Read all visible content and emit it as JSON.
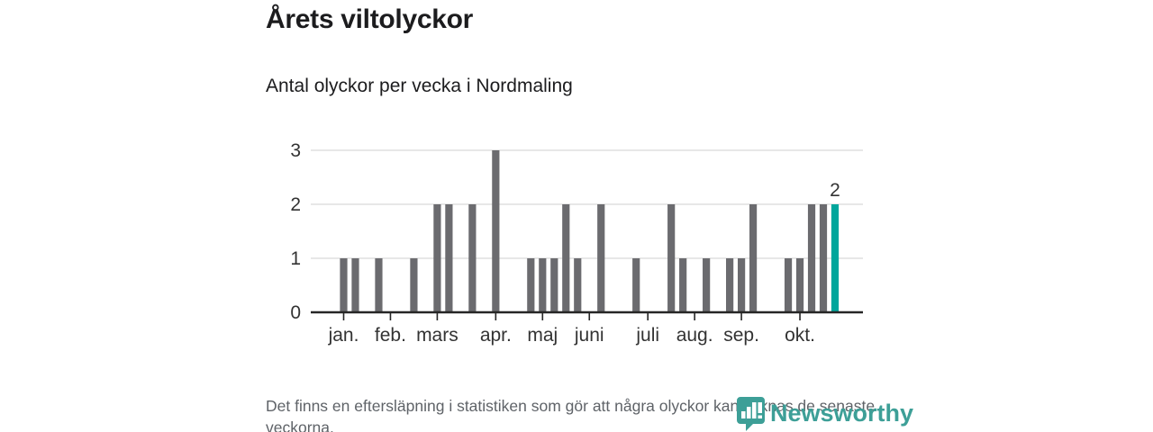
{
  "chart_data": {
    "type": "bar",
    "title": "Årets viltolyckor",
    "subtitle": "Antal olyckor per vecka i Nordmaling",
    "xlabel": "",
    "ylabel": "",
    "x_unit": "week",
    "values": [
      1,
      1,
      0,
      1,
      0,
      0,
      1,
      0,
      2,
      2,
      0,
      2,
      0,
      3,
      0,
      0,
      1,
      1,
      1,
      2,
      1,
      0,
      2,
      0,
      0,
      1,
      0,
      0,
      2,
      1,
      0,
      1,
      0,
      1,
      1,
      2,
      0,
      0,
      1,
      1,
      2,
      2,
      2
    ],
    "month_ticks": [
      {
        "label": "jan.",
        "week_index": 0
      },
      {
        "label": "feb.",
        "week_index": 4
      },
      {
        "label": "mars",
        "week_index": 8
      },
      {
        "label": "apr.",
        "week_index": 13
      },
      {
        "label": "maj",
        "week_index": 17
      },
      {
        "label": "juni",
        "week_index": 21
      },
      {
        "label": "juli",
        "week_index": 26
      },
      {
        "label": "aug.",
        "week_index": 30
      },
      {
        "label": "sep.",
        "week_index": 34
      },
      {
        "label": "okt.",
        "week_index": 39
      }
    ],
    "yticks": [
      0,
      1,
      2,
      3
    ],
    "ylim": [
      0,
      3
    ],
    "grid": true,
    "legend": "none",
    "highlight_index": 42,
    "annotation": {
      "text": "2",
      "week_index": 42,
      "value": 2
    },
    "colors": {
      "bar": "#6b6b6f",
      "highlight": "#00a69c",
      "grid": "#e7e7e7",
      "axis": "#262626",
      "label": "#333333"
    }
  },
  "footer": {
    "note": "Det finns en eftersläpning i statistiken som gör att några olyckor kan saknas de senaste veckorna."
  },
  "branding": {
    "logo_text": "Newsworthy",
    "logo_color": "#3d9f97",
    "logo_icon": "bar-chart-pin-icon"
  }
}
